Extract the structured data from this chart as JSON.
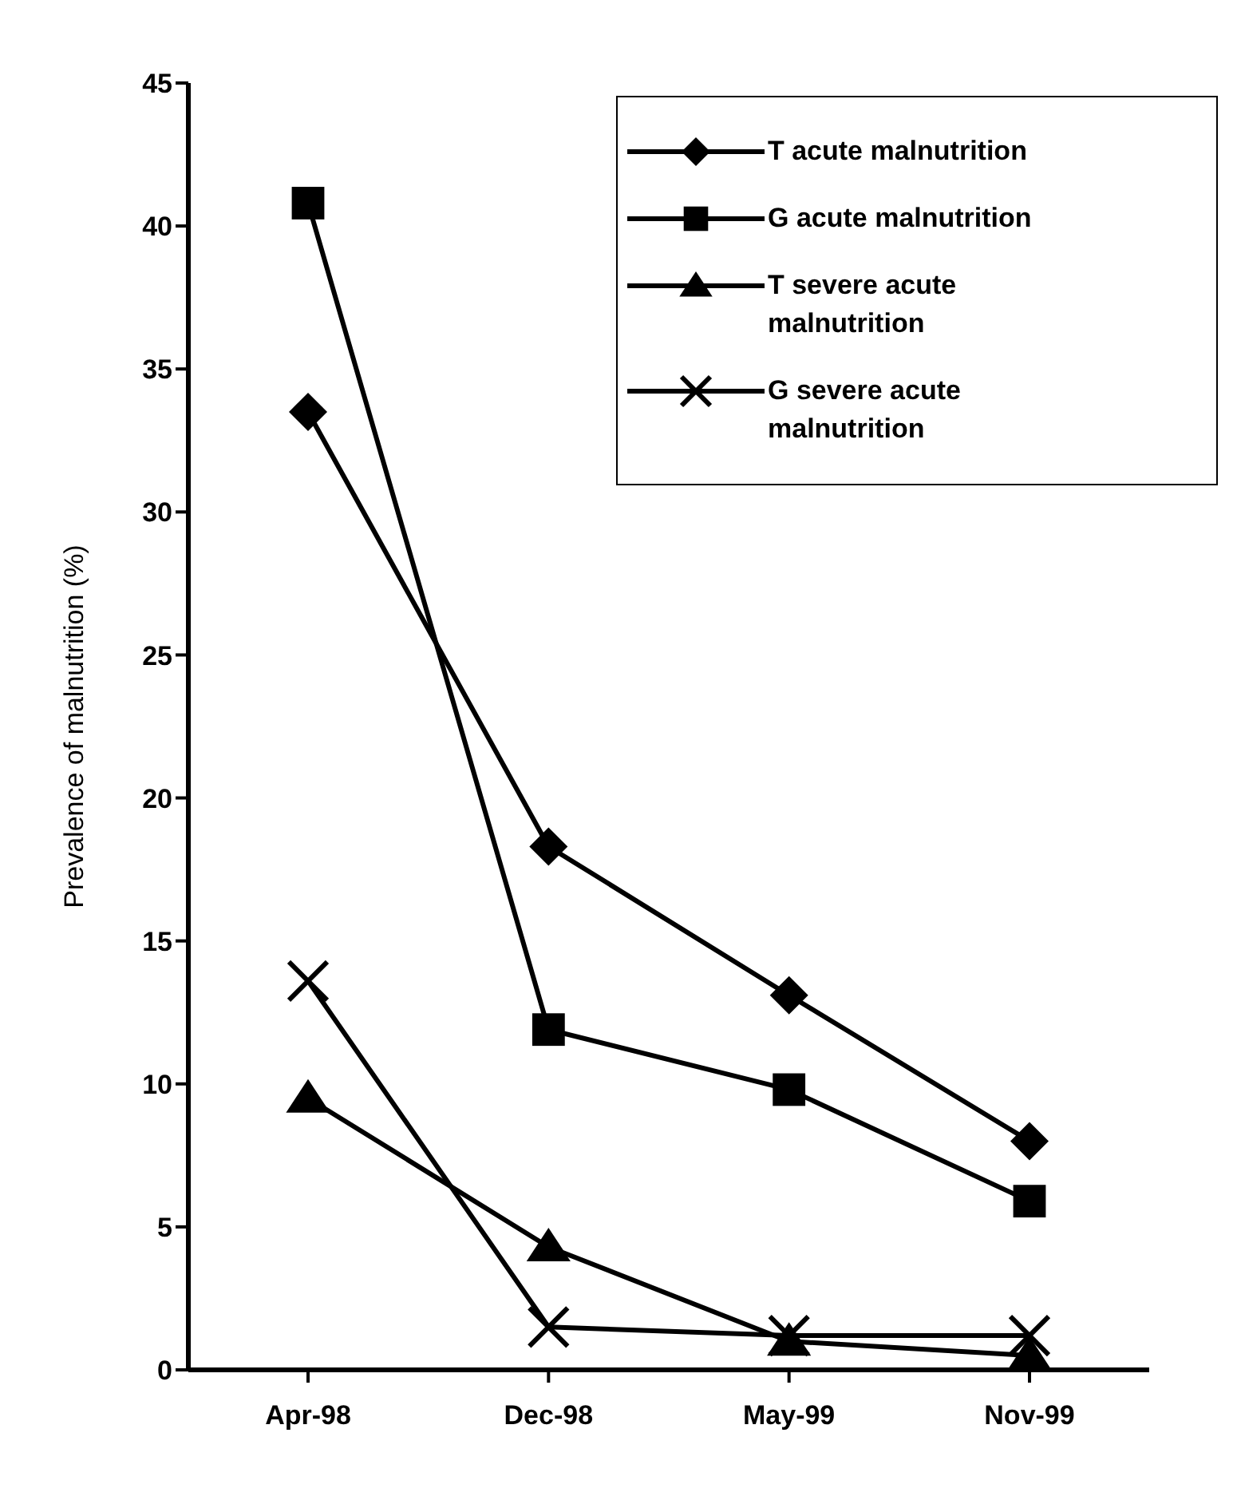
{
  "chart_data": {
    "type": "line",
    "ylabel": "Prevalence of malnutrition (%)",
    "categories": [
      "Apr-98",
      "Dec-98",
      "May-99",
      "Nov-99"
    ],
    "series": [
      {
        "name": "T acute malnutrition",
        "color": "#000000",
        "marker": "diamond",
        "values": [
          33.5,
          18.3,
          13.1,
          8.0
        ]
      },
      {
        "name": "G acute malnutrition",
        "color": "#000000",
        "marker": "square",
        "values": [
          40.8,
          11.9,
          9.8,
          5.9
        ]
      },
      {
        "name": "T severe acute malnutrition",
        "color": "#000000",
        "marker": "triangle",
        "values": [
          9.5,
          4.3,
          1.0,
          0.5
        ]
      },
      {
        "name": "G severe acute malnutrition",
        "color": "#000000",
        "marker": "cross",
        "values": [
          13.6,
          1.5,
          1.2,
          1.2
        ]
      }
    ],
    "ylim": [
      0,
      45
    ],
    "yticks": [
      0,
      5,
      10,
      15,
      20,
      25,
      30,
      35,
      40,
      45
    ],
    "grid": false,
    "legend": "top right",
    "line_style": "solid"
  }
}
